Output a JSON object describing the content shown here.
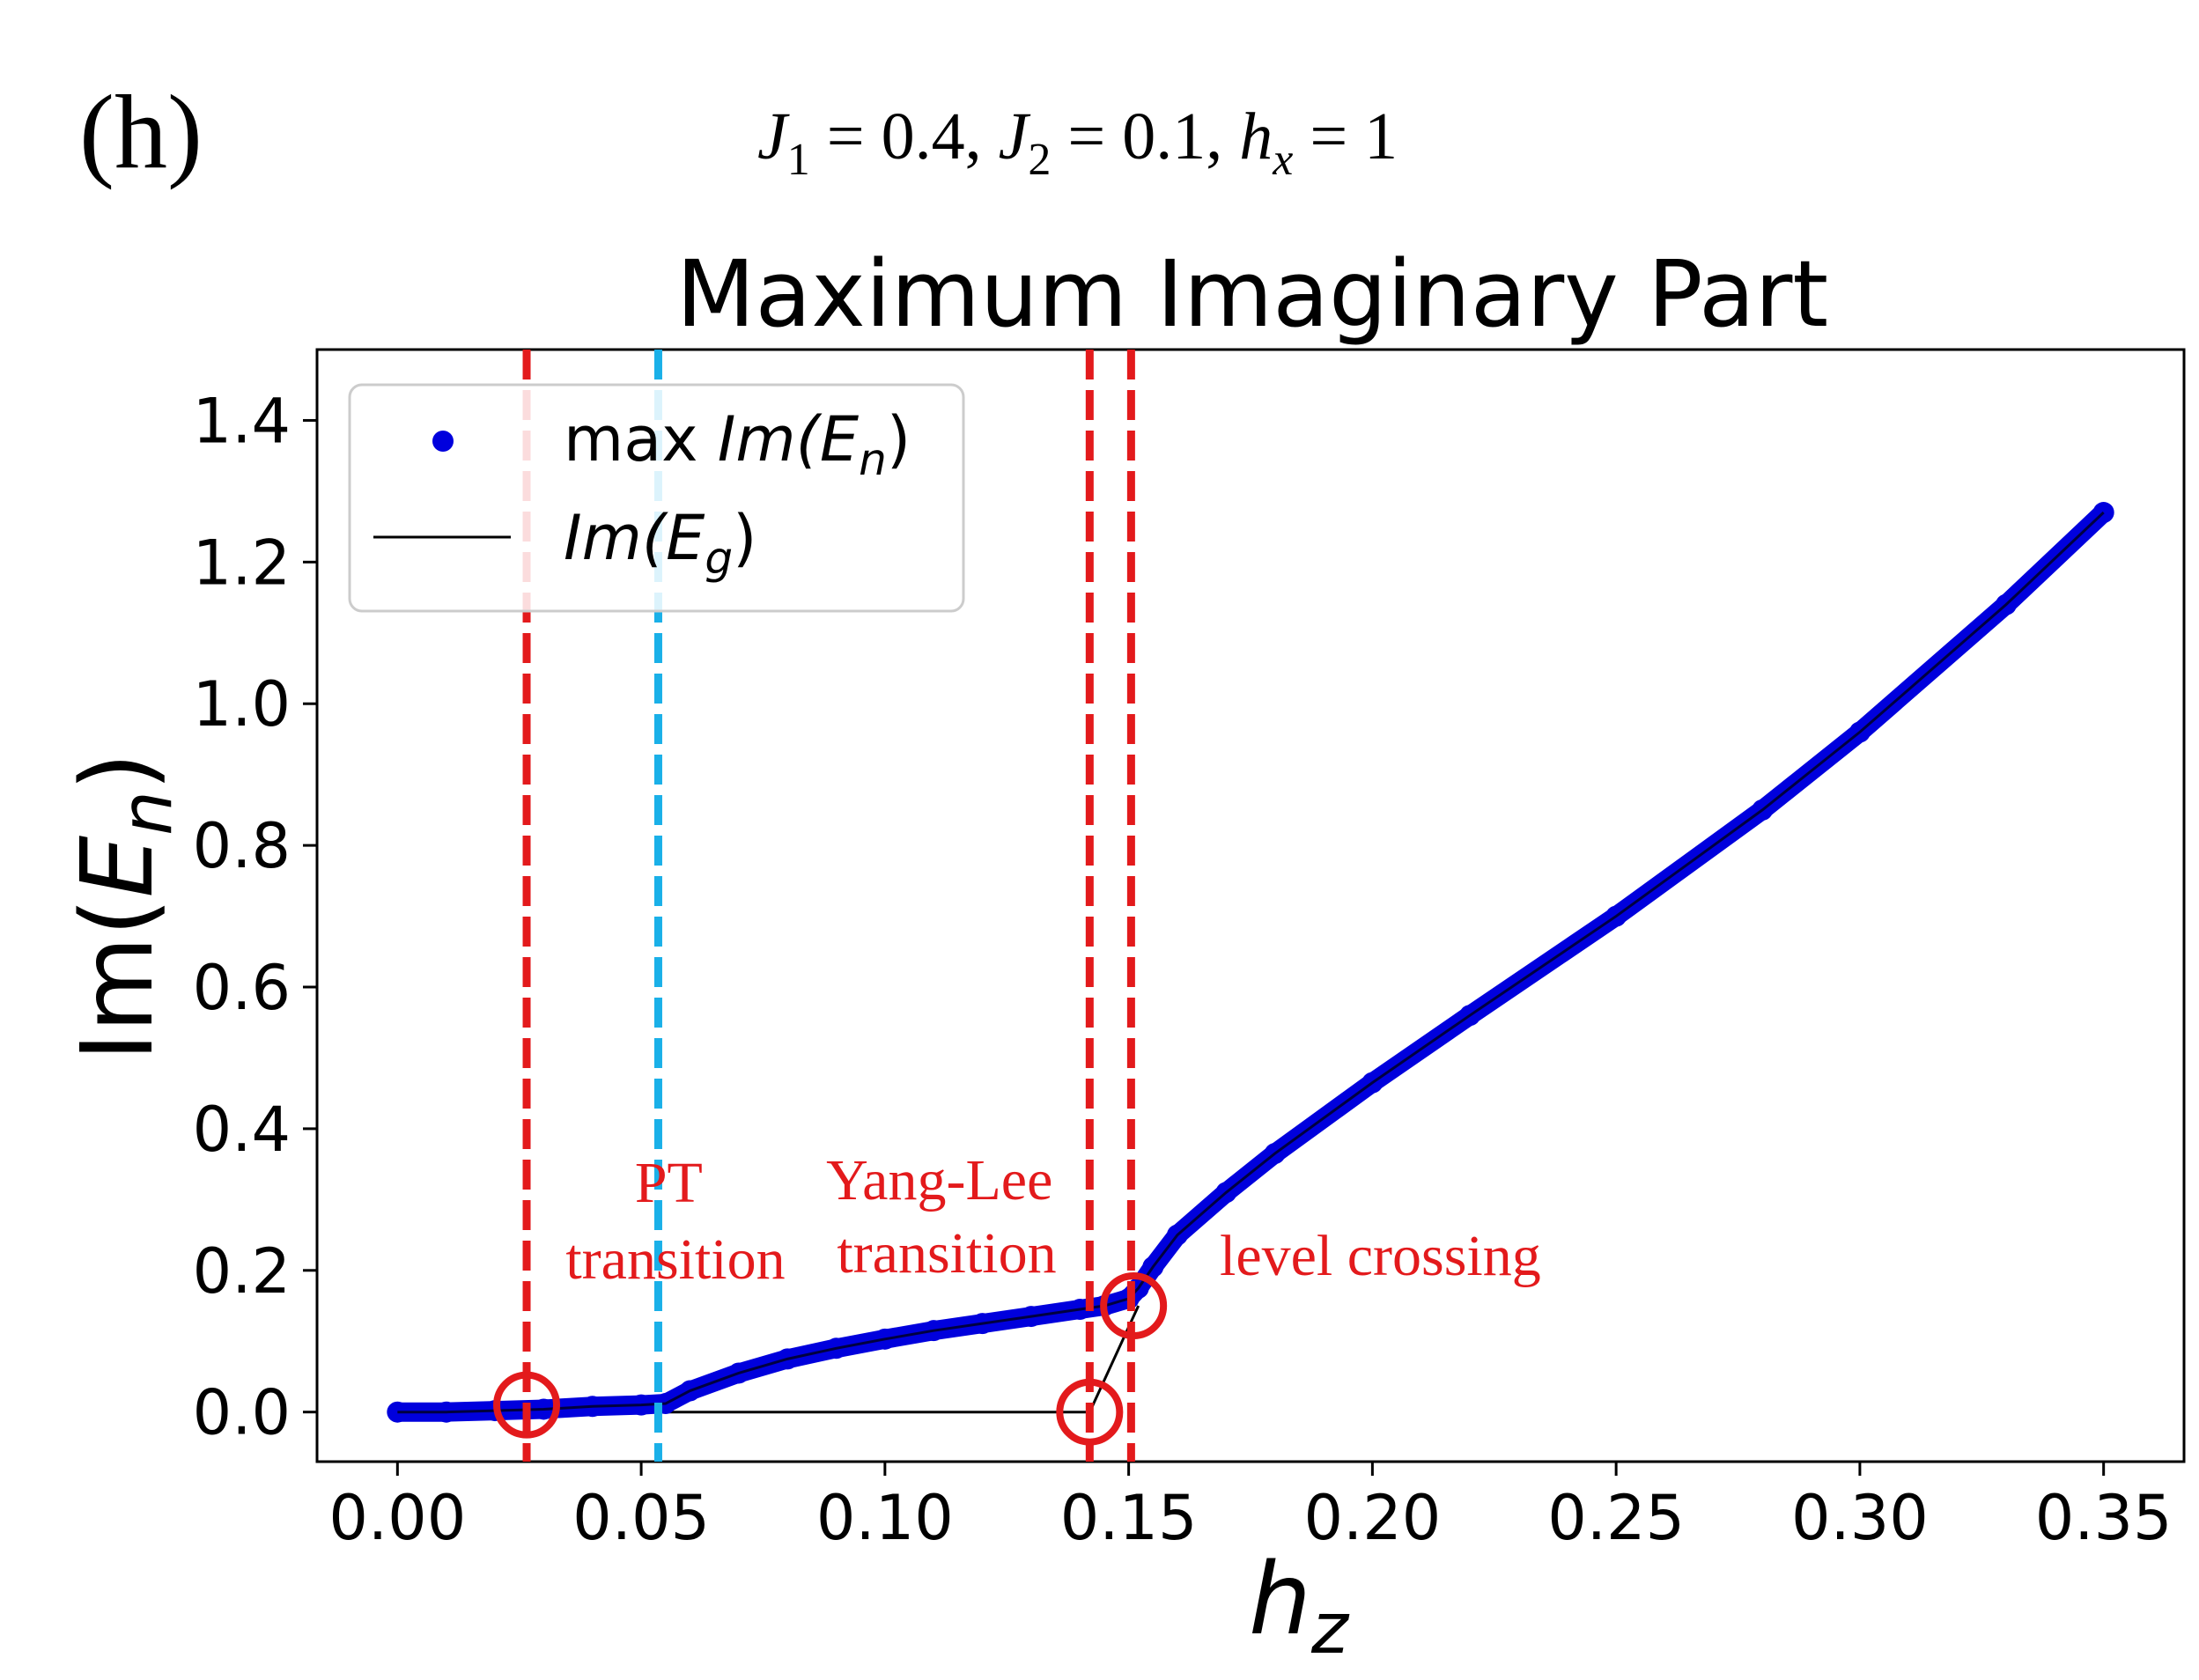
{
  "panel_label": "(h)",
  "params": {
    "J1_sym": "J",
    "J1_sub": "1",
    "J1_val": " = 0.4,",
    "J2_sym": "J",
    "J2_sub": "2",
    "J2_val": " = 0.1,",
    "hx_sym": "h",
    "hx_sub": "x",
    "hx_val": " = 1"
  },
  "chart_data": {
    "type": "line",
    "title": "Maximum Imaginary Part",
    "xlabel": {
      "base": "h",
      "sub": "z"
    },
    "ylabel": {
      "prefix": "Im(",
      "base": "E",
      "sub": "n",
      "suffix": ")"
    },
    "xlim": [
      -0.0165,
      0.3665
    ],
    "ylim": [
      -0.07,
      1.5
    ],
    "xticks": [
      0.0,
      0.05,
      0.1,
      0.15,
      0.2,
      0.25,
      0.3,
      0.35
    ],
    "xtick_labels": [
      "0.00",
      "0.05",
      "0.10",
      "0.15",
      "0.20",
      "0.25",
      "0.30",
      "0.35"
    ],
    "yticks": [
      0.0,
      0.2,
      0.4,
      0.6,
      0.8,
      1.0,
      1.2,
      1.4
    ],
    "ytick_labels": [
      "0.0",
      "0.2",
      "0.4",
      "0.6",
      "0.8",
      "1.0",
      "1.2",
      "1.4"
    ],
    "legend_position": "upper-left",
    "series": [
      {
        "name": "max Im(E_n)",
        "legend": {
          "prefix": "max ",
          "fn": "Im(",
          "base": "E",
          "sub": "n",
          "suffix": ")"
        },
        "style": "markers",
        "color": "#0000dd",
        "x": [
          0.0,
          0.01,
          0.02,
          0.03,
          0.04,
          0.05,
          0.055,
          0.06,
          0.07,
          0.08,
          0.09,
          0.1,
          0.11,
          0.12,
          0.13,
          0.14,
          0.145,
          0.15,
          0.152,
          0.155,
          0.16,
          0.17,
          0.18,
          0.2,
          0.22,
          0.25,
          0.28,
          0.3,
          0.33,
          0.35
        ],
        "y": [
          0.0,
          0.0,
          0.002,
          0.004,
          0.008,
          0.01,
          0.012,
          0.03,
          0.055,
          0.075,
          0.09,
          0.103,
          0.115,
          0.125,
          0.135,
          0.145,
          0.15,
          0.16,
          0.175,
          0.205,
          0.25,
          0.31,
          0.365,
          0.465,
          0.56,
          0.7,
          0.85,
          0.96,
          1.14,
          1.27
        ]
      },
      {
        "name": "Im(E_g)",
        "legend": {
          "prefix": "",
          "fn": "Im(",
          "base": "E",
          "sub": "g",
          "suffix": ")"
        },
        "style": "line",
        "color": "#000000",
        "x": [
          0.0,
          0.142,
          0.145,
          0.148,
          0.15,
          0.152
        ],
        "y": [
          0.0,
          0.0,
          0.045,
          0.09,
          0.12,
          0.15
        ]
      }
    ],
    "vlines": [
      {
        "x": 0.0265,
        "color": "#e31a1c",
        "name": "vline-red-1"
      },
      {
        "x": 0.0535,
        "color": "#1ab0e8",
        "name": "vline-cyan-pt"
      },
      {
        "x": 0.142,
        "color": "#e31a1c",
        "name": "vline-red-2"
      },
      {
        "x": 0.1505,
        "color": "#e31a1c",
        "name": "vline-red-3"
      }
    ],
    "circles": [
      {
        "x": 0.0265,
        "y": 0.01,
        "name": "circle-1"
      },
      {
        "x": 0.142,
        "y": 0.0,
        "name": "circle-2"
      },
      {
        "x": 0.151,
        "y": 0.15,
        "name": "circle-3"
      }
    ],
    "annotations": [
      {
        "lines": [
          "PT",
          "transition"
        ],
        "color": "#e31a1c",
        "name": "annotation-pt-transition"
      },
      {
        "lines": [
          "Yang-Lee",
          "transition"
        ],
        "color": "#e31a1c",
        "name": "annotation-yang-lee-transition"
      },
      {
        "lines": [
          "level crossing"
        ],
        "color": "#e31a1c",
        "name": "annotation-level-crossing"
      }
    ]
  }
}
